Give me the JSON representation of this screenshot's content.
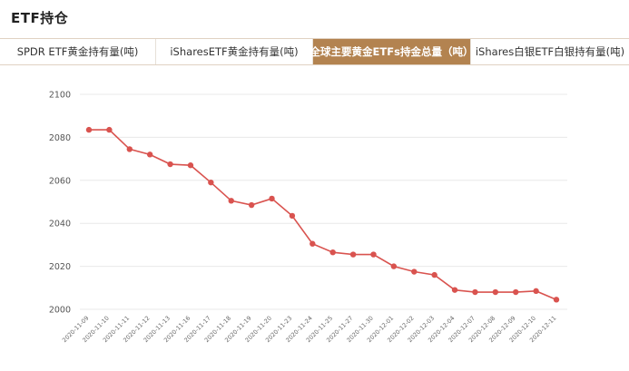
{
  "header": {
    "title": "ETF持仓"
  },
  "tabs": [
    {
      "label": "SPDR ETF黄金持有量(吨)",
      "active": false
    },
    {
      "label": "iSharesETF黄金持有量(吨)",
      "active": false
    },
    {
      "label": "全球主要黄金ETFs持金总量（吨）",
      "active": true
    },
    {
      "label": "iShares白银ETF白银持有量(吨)",
      "active": false
    }
  ],
  "colors": {
    "accent": "#b38350",
    "series": "#d9534f",
    "grid": "#e8e8e8"
  },
  "chart_data": {
    "type": "line",
    "x": [
      "2020-11-09",
      "2020-11-10",
      "2020-11-11",
      "2020-11-12",
      "2020-11-13",
      "2020-11-16",
      "2020-11-17",
      "2020-11-18",
      "2020-11-19",
      "2020-11-20",
      "2020-11-23",
      "2020-11-24",
      "2020-11-25",
      "2020-11-27",
      "2020-11-30",
      "2020-12-01",
      "2020-12-02",
      "2020-12-03",
      "2020-12-04",
      "2020-12-07",
      "2020-12-08",
      "2020-12-09",
      "2020-12-10",
      "2020-12-11"
    ],
    "series": [
      {
        "values": [
          2083.5,
          2083.5,
          2074.5,
          2072.0,
          2067.5,
          2067.0,
          2059.0,
          2050.5,
          2048.5,
          2051.5,
          2043.5,
          2030.5,
          2026.5,
          2025.5,
          2025.5,
          2020.0,
          2017.5,
          2016.0,
          2009.0,
          2008.0,
          2008.0,
          2008.0,
          2008.5,
          2004.5
        ]
      }
    ],
    "yticks": [
      2000,
      2020,
      2040,
      2060,
      2080,
      2100
    ],
    "ylim": [
      2000,
      2100
    ],
    "title": "",
    "xlabel": "",
    "ylabel": "",
    "grid": true,
    "legend": "none"
  }
}
